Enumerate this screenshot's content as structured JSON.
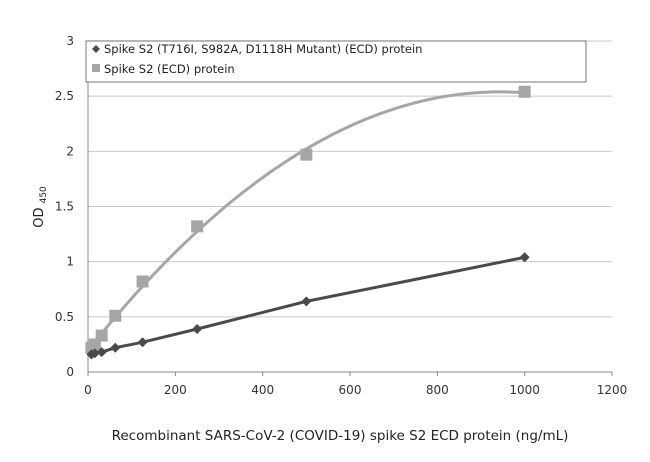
{
  "chart_data": {
    "type": "scatter",
    "title": "",
    "xlabel": "Recombinant SARS-CoV-2 (COVID-19) spike S2  ECD protein (ng/mL)",
    "ylabel": "OD",
    "ylabel_subscript": "450",
    "xlim": [
      0,
      1200
    ],
    "ylim": [
      0,
      3
    ],
    "xticks": [
      0,
      200,
      400,
      600,
      800,
      1000,
      1200
    ],
    "yticks": [
      0,
      0.5,
      1,
      1.5,
      2,
      2.5,
      3
    ],
    "ytick_labels": [
      "0",
      "0.5",
      "1",
      "1.5",
      "2",
      "2.5",
      "3"
    ],
    "grid": "horizontal",
    "legend_position": "top",
    "series": [
      {
        "name": "Spike S2 (T716I, S982A, D1118H Mutant) (ECD) protein",
        "marker": "diamond",
        "color": "#4a4a4a",
        "trendline": "linear",
        "x": [
          7.8,
          15.6,
          31.25,
          62.5,
          125,
          250,
          500,
          1000
        ],
        "y": [
          0.16,
          0.17,
          0.18,
          0.22,
          0.27,
          0.39,
          0.64,
          1.04
        ]
      },
      {
        "name": "Spike S2 (ECD) protein",
        "marker": "square",
        "color": "#a6a6a6",
        "trendline": "polynomial",
        "x": [
          7.8,
          15.6,
          31.25,
          62.5,
          125,
          250,
          500,
          1000
        ],
        "y": [
          0.22,
          0.25,
          0.33,
          0.51,
          0.82,
          1.32,
          1.97,
          2.54
        ]
      }
    ]
  }
}
